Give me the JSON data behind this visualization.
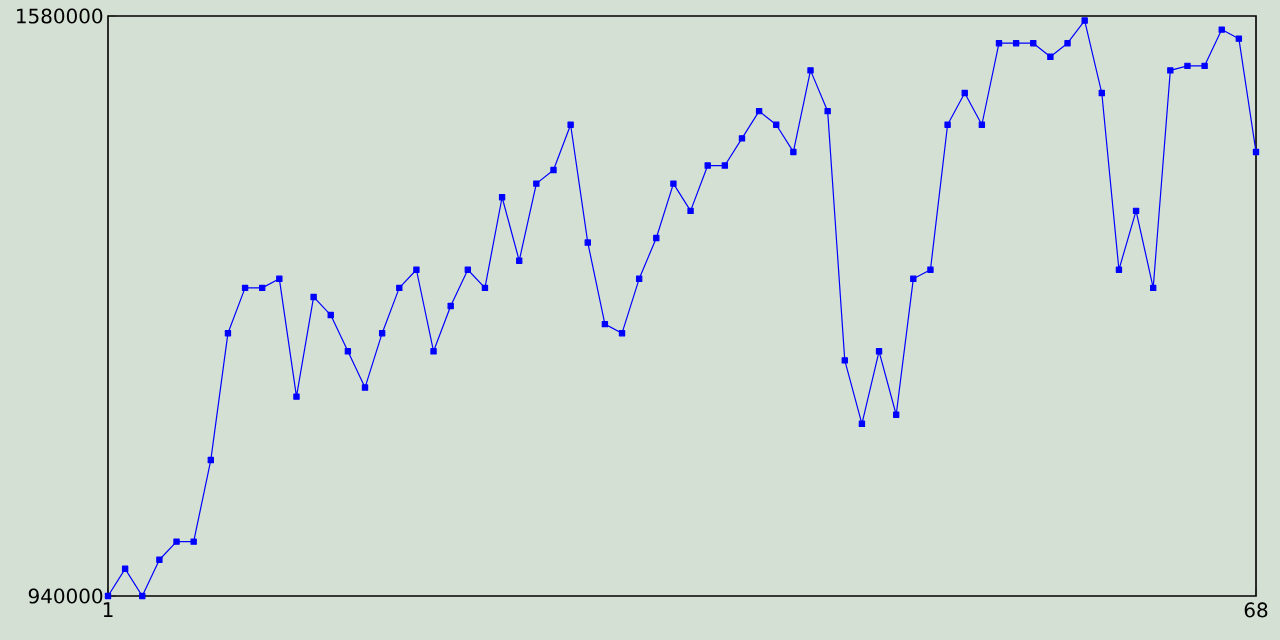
{
  "chart_data": {
    "type": "line",
    "x": [
      1,
      2,
      3,
      4,
      5,
      6,
      7,
      8,
      9,
      10,
      11,
      12,
      13,
      14,
      15,
      16,
      17,
      18,
      19,
      20,
      21,
      22,
      23,
      24,
      25,
      26,
      27,
      28,
      29,
      30,
      31,
      32,
      33,
      34,
      35,
      36,
      37,
      38,
      39,
      40,
      41,
      42,
      43,
      44,
      45,
      46,
      47,
      48,
      49,
      50,
      51,
      52,
      53,
      54,
      55,
      56,
      57,
      58,
      59,
      60,
      61,
      62,
      63,
      64,
      65,
      66,
      67,
      68
    ],
    "series": [
      {
        "color": "#0000ff",
        "values": [
          940000,
          970000,
          940000,
          980000,
          1000000,
          1000000,
          1090000,
          1230000,
          1280000,
          1280000,
          1290000,
          1160000,
          1270000,
          1250000,
          1210000,
          1170000,
          1230000,
          1280000,
          1300000,
          1210000,
          1260000,
          1300000,
          1280000,
          1380000,
          1310000,
          1395000,
          1410000,
          1460000,
          1330000,
          1240000,
          1230000,
          1290000,
          1335000,
          1395000,
          1365000,
          1415000,
          1415000,
          1445000,
          1475000,
          1460000,
          1430000,
          1520000,
          1475000,
          1200000,
          1130000,
          1210000,
          1140000,
          1290000,
          1300000,
          1460000,
          1495000,
          1460000,
          1550000,
          1550000,
          1550000,
          1535000,
          1550000,
          1575000,
          1495000,
          1300000,
          1365000,
          1280000,
          1520000,
          1525000,
          1525000,
          1565000,
          1555000,
          1430000
        ]
      }
    ],
    "xlim": [
      1,
      68
    ],
    "ylim": [
      940000,
      1580000
    ],
    "xticks": [
      1,
      68
    ],
    "yticks": [
      940000,
      1580000
    ],
    "marker": "square",
    "line_style": "solid"
  }
}
